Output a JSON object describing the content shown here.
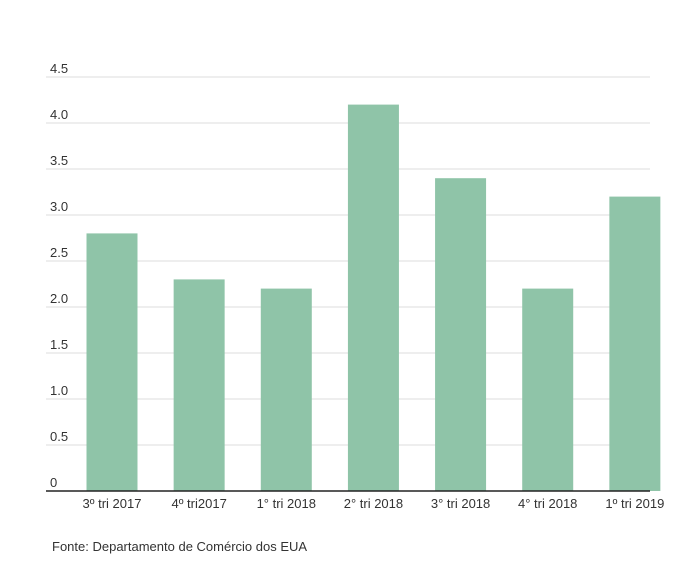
{
  "chart_data": {
    "type": "bar",
    "categories": [
      "3º tri 2017",
      "4º tri2017",
      "1° tri 2018",
      "2° tri 2018",
      "3° tri 2018",
      "4° tri 2018",
      "1º tri 2019"
    ],
    "values": [
      2.8,
      2.3,
      2.2,
      4.2,
      3.4,
      2.2,
      3.2
    ],
    "title": "",
    "xlabel": "",
    "ylabel": "",
    "ylim": [
      0,
      4.5
    ],
    "yticks": [
      "0",
      "0.5",
      "1.0",
      "1.5",
      "2.0",
      "2.5",
      "3.0",
      "3.5",
      "4.0",
      "4.5"
    ],
    "grid": true,
    "legend": "none",
    "bar_color": "#8fc4a8"
  },
  "source": "Fonte: Departamento de Comércio dos EUA"
}
